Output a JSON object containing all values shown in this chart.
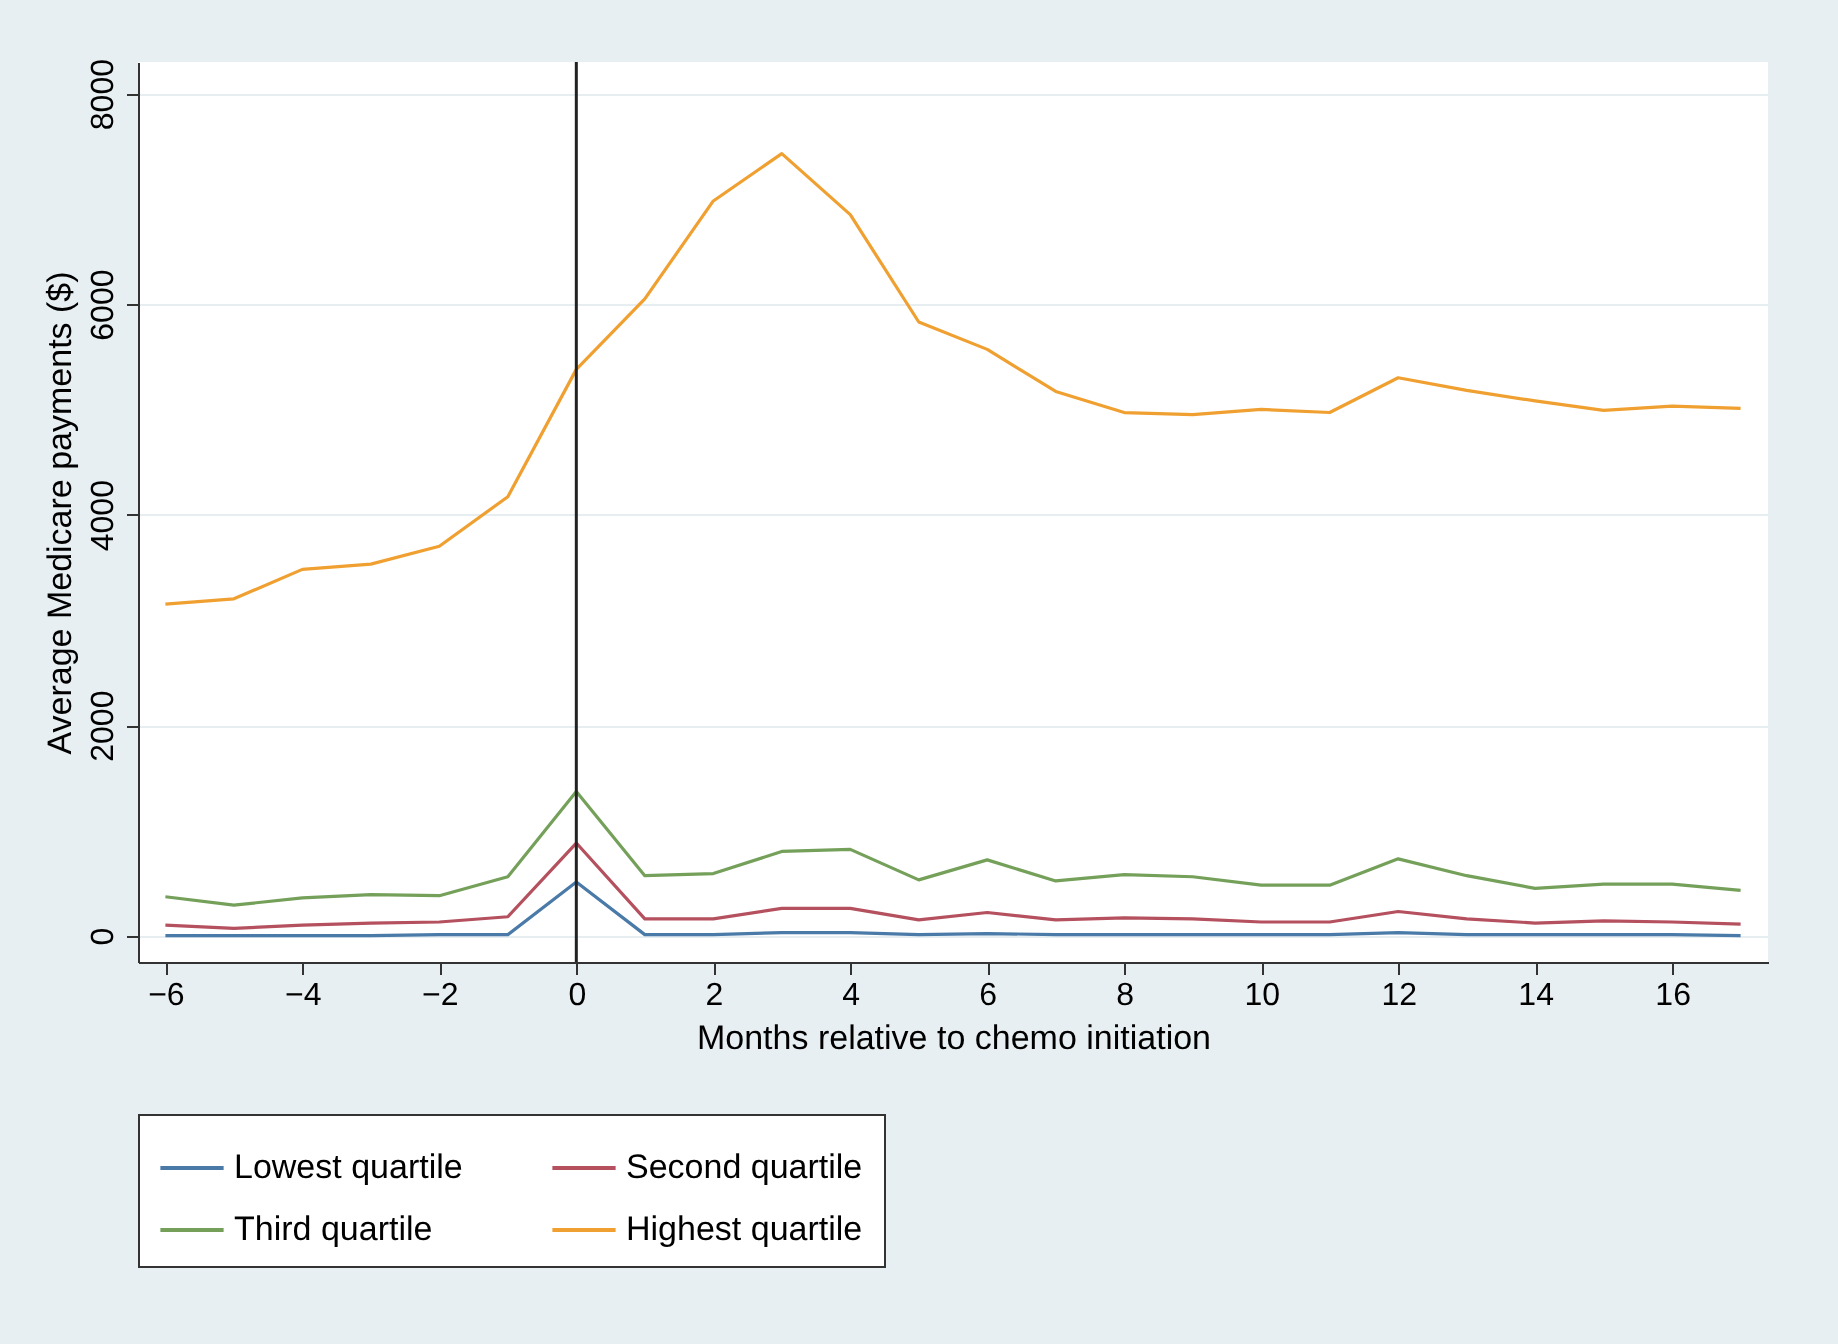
{
  "chart_data": {
    "type": "line",
    "xlabel": "Months relative to chemo initiation",
    "ylabel": "Average Medicare payments ($)",
    "x": [
      -6,
      -5,
      -4,
      -3,
      -2,
      -1,
      0,
      1,
      2,
      3,
      4,
      5,
      6,
      7,
      8,
      9,
      10,
      11,
      12,
      13,
      14,
      15,
      16,
      17
    ],
    "xlim": [
      -6.4,
      17.4
    ],
    "xticks": [
      -6,
      -4,
      -2,
      0,
      2,
      4,
      6,
      8,
      10,
      12,
      14,
      16
    ],
    "ylim": [
      -250,
      8300
    ],
    "yticks": [
      0,
      2000,
      4000,
      6000,
      8000
    ],
    "grid": "y",
    "legend": "bottom",
    "line_style": "solid",
    "ref_lines": [
      {
        "axis": "x",
        "value": 0,
        "color": "#222222"
      }
    ],
    "series": [
      {
        "name": "Lowest quartile",
        "color": "#4a7aa8",
        "values": [
          0,
          0,
          0,
          0,
          10,
          10,
          510,
          10,
          10,
          30,
          30,
          10,
          20,
          10,
          10,
          10,
          10,
          10,
          30,
          10,
          10,
          10,
          10,
          0
        ]
      },
      {
        "name": "Second quartile",
        "color": "#b5505e",
        "values": [
          100,
          70,
          100,
          120,
          130,
          180,
          880,
          160,
          160,
          260,
          260,
          150,
          220,
          150,
          170,
          160,
          130,
          130,
          230,
          160,
          120,
          140,
          130,
          110
        ]
      },
      {
        "name": "Third quartile",
        "color": "#74a05a",
        "values": [
          370,
          290,
          360,
          390,
          380,
          560,
          1370,
          570,
          590,
          800,
          820,
          530,
          720,
          520,
          580,
          560,
          480,
          480,
          730,
          570,
          450,
          490,
          490,
          430
        ]
      },
      {
        "name": "Highest quartile",
        "color": "#f0a030",
        "values": [
          3150,
          3200,
          3480,
          3530,
          3700,
          4170,
          5380,
          6050,
          6980,
          7430,
          6850,
          5830,
          5570,
          5170,
          4970,
          4950,
          5000,
          4970,
          5300,
          5180,
          5080,
          4990,
          5030,
          5010
        ]
      }
    ]
  }
}
